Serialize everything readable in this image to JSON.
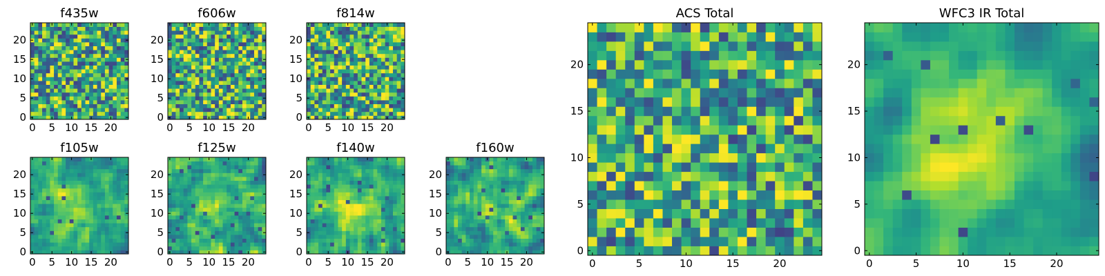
{
  "chart_data": [
    {
      "type": "heatmap",
      "title": "f435w",
      "xticks": [
        "0",
        "5",
        "10",
        "15",
        "20"
      ],
      "yticks": [
        "0",
        "5",
        "10",
        "15",
        "20"
      ],
      "xlim": [
        0,
        25
      ],
      "ylim": [
        0,
        25
      ],
      "grid": false,
      "legend": "none",
      "colormap": "viridis",
      "seed": 11,
      "smooth": 0,
      "blob": 0
    },
    {
      "type": "heatmap",
      "title": "f606w",
      "xticks": [
        "0",
        "5",
        "10",
        "15",
        "20"
      ],
      "yticks": [
        "0",
        "5",
        "10",
        "15",
        "20"
      ],
      "xlim": [
        0,
        25
      ],
      "ylim": [
        0,
        25
      ],
      "grid": false,
      "legend": "none",
      "colormap": "viridis",
      "seed": 23,
      "smooth": 0,
      "blob": 0
    },
    {
      "type": "heatmap",
      "title": "f814w",
      "xticks": [
        "0",
        "5",
        "10",
        "15",
        "20"
      ],
      "yticks": [
        "0",
        "5",
        "10",
        "15",
        "20"
      ],
      "xlim": [
        0,
        25
      ],
      "ylim": [
        0,
        25
      ],
      "grid": false,
      "legend": "none",
      "colormap": "viridis",
      "seed": 37,
      "smooth": 0,
      "blob": 0
    },
    {
      "type": "heatmap",
      "title": "f105w",
      "xticks": [
        "0",
        "5",
        "10",
        "15",
        "20"
      ],
      "yticks": [
        "0",
        "5",
        "10",
        "15",
        "20"
      ],
      "xlim": [
        0,
        25
      ],
      "ylim": [
        0,
        25
      ],
      "grid": false,
      "legend": "none",
      "colormap": "viridis",
      "seed": 41,
      "smooth": 1,
      "blob": 0.6
    },
    {
      "type": "heatmap",
      "title": "f125w",
      "xticks": [
        "0",
        "5",
        "10",
        "15",
        "20"
      ],
      "yticks": [
        "0",
        "5",
        "10",
        "15",
        "20"
      ],
      "xlim": [
        0,
        25
      ],
      "ylim": [
        0,
        25
      ],
      "grid": false,
      "legend": "none",
      "colormap": "viridis",
      "seed": 53,
      "smooth": 1,
      "blob": 0.3
    },
    {
      "type": "heatmap",
      "title": "f140w",
      "xticks": [
        "0",
        "5",
        "10",
        "15",
        "20"
      ],
      "yticks": [
        "0",
        "5",
        "10",
        "15",
        "20"
      ],
      "xlim": [
        0,
        25
      ],
      "ylim": [
        0,
        25
      ],
      "grid": false,
      "legend": "none",
      "colormap": "viridis",
      "seed": 67,
      "smooth": 1,
      "blob": 0.6
    },
    {
      "type": "heatmap",
      "title": "f160w",
      "xticks": [
        "0",
        "5",
        "10",
        "15",
        "20"
      ],
      "yticks": [
        "0",
        "5",
        "10",
        "15",
        "20"
      ],
      "xlim": [
        0,
        25
      ],
      "ylim": [
        0,
        25
      ],
      "grid": false,
      "legend": "none",
      "colormap": "viridis",
      "seed": 79,
      "smooth": 1,
      "blob": 0.5
    },
    {
      "type": "heatmap",
      "title": "ACS Total",
      "xticks": [
        "0",
        "5",
        "10",
        "15",
        "20"
      ],
      "yticks": [
        "0",
        "5",
        "10",
        "15",
        "20"
      ],
      "xlim": [
        0,
        25
      ],
      "ylim": [
        0,
        25
      ],
      "grid": false,
      "legend": "none",
      "colormap": "viridis",
      "seed": 97,
      "smooth": 0,
      "blob": 0.1
    },
    {
      "type": "heatmap",
      "title": "WFC3 IR Total",
      "xticks": [
        "0",
        "5",
        "10",
        "15",
        "20"
      ],
      "yticks": [
        "0",
        "5",
        "10",
        "15",
        "20"
      ],
      "xlim": [
        0,
        25
      ],
      "ylim": [
        0,
        25
      ],
      "grid": false,
      "legend": "none",
      "colormap": "viridis",
      "seed": 113,
      "smooth": 2,
      "blob": 0.9
    }
  ]
}
